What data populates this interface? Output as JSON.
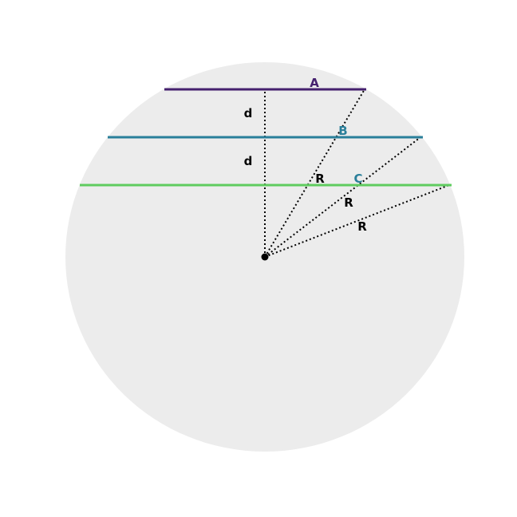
{
  "diagram": {
    "labels": {
      "chord_a": "A",
      "chord_b": "B",
      "chord_c": "C",
      "distance_1": "d",
      "distance_2": "d",
      "radius_1": "R",
      "radius_2": "R",
      "radius_3": "R"
    },
    "colors": {
      "circle_fill": "#ececec",
      "chord_a": "#45206e",
      "chord_b": "#2a7f9a",
      "chord_c": "#5fcc5f",
      "lines": "#000000",
      "label_default": "#000000"
    }
  }
}
